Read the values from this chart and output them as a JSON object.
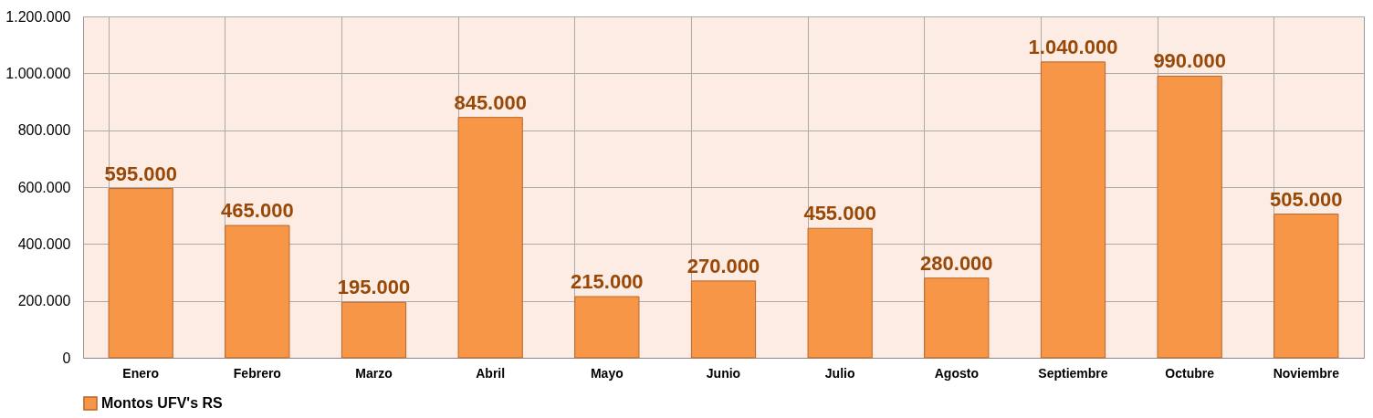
{
  "chart_data": {
    "type": "bar",
    "categories": [
      "Enero",
      "Febrero",
      "Marzo",
      "Abril",
      "Mayo",
      "Junio",
      "Julio",
      "Agosto",
      "Septiembre",
      "Octubre",
      "Noviembre"
    ],
    "series": [
      {
        "name": "Montos UFV's RS",
        "color": "#f79646",
        "values": [
          595000,
          465000,
          195000,
          845000,
          215000,
          270000,
          455000,
          280000,
          1040000,
          990000,
          505000
        ],
        "value_labels": [
          "595.000",
          "465.000",
          "195.000",
          "845.000",
          "215.000",
          "270.000",
          "455.000",
          "280.000",
          "1.040.000",
          "990.000",
          "505.000"
        ]
      }
    ],
    "ylim": [
      0,
      1200000
    ],
    "yticks": [
      0,
      {
        "value": 200000,
        "label": "200.000"
      },
      {
        "value": 400000,
        "label": "400.000"
      },
      {
        "value": 600000,
        "label": "600.000"
      },
      {
        "value": 800000,
        "label": "800.000"
      },
      {
        "value": 1000000,
        "label": "1.000.000"
      },
      {
        "value": 1200000,
        "label": "1.200.000"
      }
    ],
    "grid": true,
    "legend": "bottom"
  }
}
